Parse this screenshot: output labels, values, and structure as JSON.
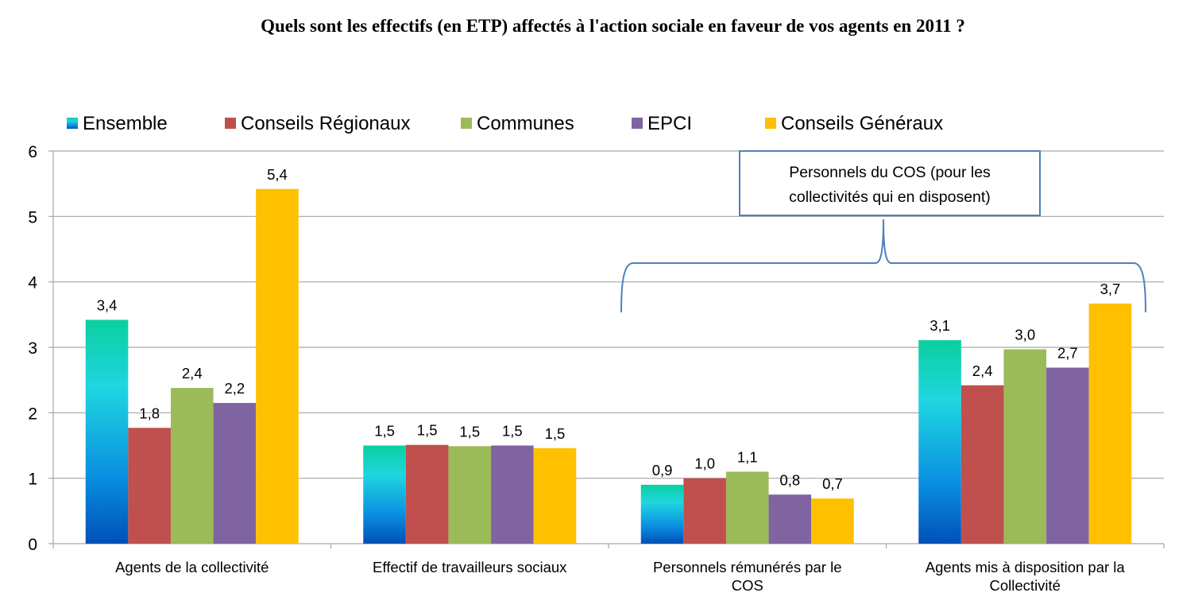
{
  "chart_data": {
    "type": "bar",
    "title": "Quels sont les effectifs (en ETP) affectés à l'action sociale en faveur de vos agents en 2011 ?",
    "xlabel": "",
    "ylabel": "",
    "ylim": [
      0,
      6
    ],
    "yticks": [
      0,
      1,
      2,
      3,
      4,
      5,
      6
    ],
    "ytick_labels": [
      "0",
      "1",
      "2",
      "3",
      "4",
      "5",
      "6"
    ],
    "grid": true,
    "legend_position": "top",
    "categories": [
      [
        "Agents de la collectivité"
      ],
      [
        "Effectif de travailleurs sociaux"
      ],
      [
        "Personnels rémunérés par le",
        "COS"
      ],
      [
        "Agents mis à disposition par la",
        "Collectivité"
      ]
    ],
    "series": [
      {
        "name": "Ensemble",
        "color": "#1a9fd9",
        "gradient": [
          "#0acf9f",
          "#1fd6e0",
          "#0a8fe0",
          "#0050b8"
        ],
        "values": [
          3.42,
          1.5,
          0.9,
          3.11
        ],
        "labels": [
          "3,4",
          "1,5",
          "0,9",
          "3,1"
        ]
      },
      {
        "name": "Conseils Régionaux",
        "color": "#c0504d",
        "values": [
          1.77,
          1.51,
          1.0,
          2.42
        ],
        "labels": [
          "1,8",
          "1,5",
          "1,0",
          "2,4"
        ]
      },
      {
        "name": "Communes",
        "color": "#9bbb59",
        "values": [
          2.38,
          1.49,
          1.1,
          2.97
        ],
        "labels": [
          "2,4",
          "1,5",
          "1,1",
          "3,0"
        ]
      },
      {
        "name": "EPCI",
        "color": "#8064a2",
        "values": [
          2.15,
          1.5,
          0.75,
          2.69
        ],
        "labels": [
          "2,2",
          "1,5",
          "0,8",
          "2,7"
        ]
      },
      {
        "name": "Conseils Généraux",
        "color": "#ffc000",
        "values": [
          5.42,
          1.46,
          0.69,
          3.67
        ],
        "labels": [
          "5,4",
          "1,5",
          "0,7",
          "3,7"
        ]
      }
    ],
    "annotations": [
      {
        "text": [
          "Personnels du COS (pour les",
          "collectivités qui en disposent)"
        ],
        "spans_categories": [
          2,
          3
        ],
        "style": "brace",
        "color": "#4f81bd"
      }
    ]
  }
}
